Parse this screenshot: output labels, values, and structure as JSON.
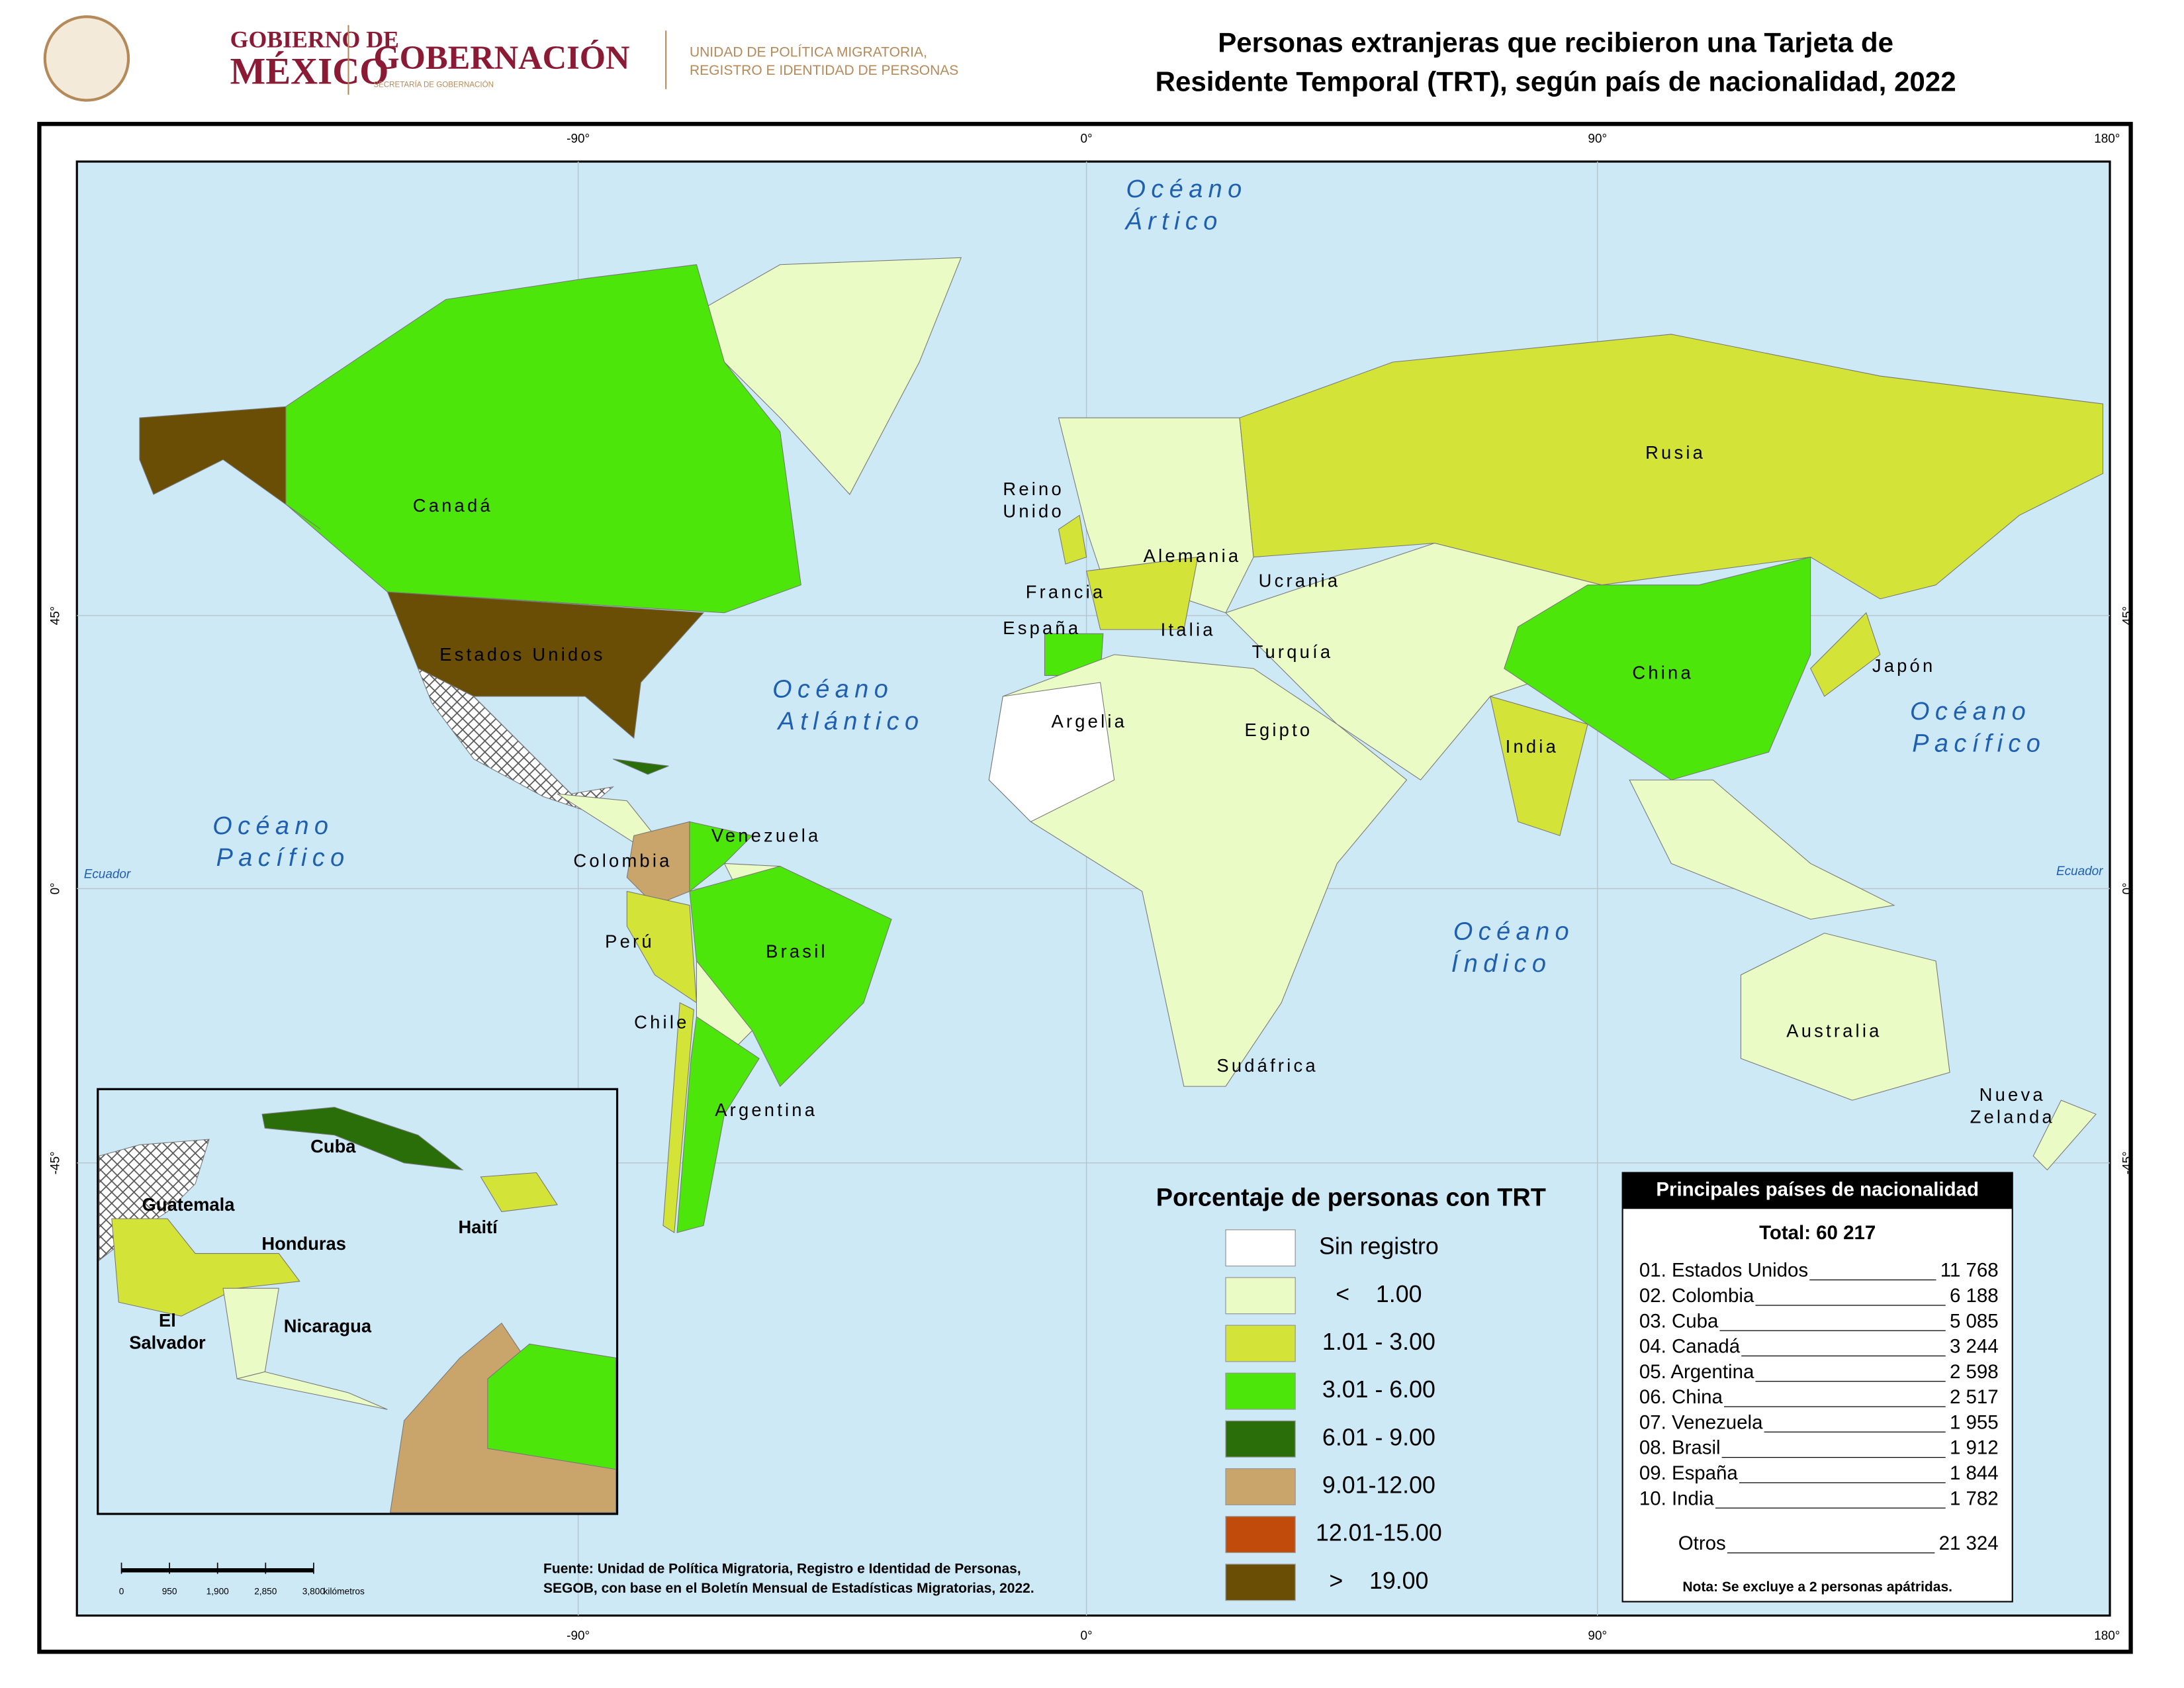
{
  "header": {
    "logo_line1": "GOBIERNO DE",
    "logo_line2": "MÉXICO",
    "agency": "GOBERNACIÓN",
    "agency_sub": "SECRETARÍA DE GOBERNACIÓN",
    "unit_line1": "UNIDAD DE POLÍTICA MIGRATORIA,",
    "unit_line2": "REGISTRO E IDENTIDAD DE PERSONAS",
    "title_line1": "Personas extranjeras que recibieron una Tarjeta de",
    "title_line2": "Residente Temporal (TRT), según país de nacionalidad, 2022"
  },
  "map": {
    "longitude_labels": [
      "-90°",
      "0°",
      "90°",
      "180°"
    ],
    "latitude_labels": [
      "45°",
      "0°",
      "-45°"
    ],
    "equator_label": "Ecuador",
    "oceans": [
      {
        "lines": [
          "Océano",
          "Ártico"
        ]
      },
      {
        "lines": [
          "Océano",
          "Atlántico"
        ]
      },
      {
        "lines": [
          "Océano",
          "Pacífico"
        ]
      },
      {
        "lines": [
          "Océano",
          "Índico"
        ]
      },
      {
        "lines": [
          "Océano",
          "Pacífico"
        ]
      }
    ],
    "countries": [
      "Canadá",
      "Estados Unidos",
      "Colombia",
      "Venezuela",
      "Perú",
      "Brasil",
      "Chile",
      "Argentina",
      "Alemania",
      "Francia",
      "Ucrania",
      "España",
      "Italia",
      "Turquía",
      "Argelia",
      "Egipto",
      "Rusia",
      "China",
      "India",
      "Japón",
      "Australia",
      "Sudáfrica"
    ],
    "two_line_countries": [
      {
        "lines": [
          "Reino",
          "Unido"
        ]
      },
      {
        "lines": [
          "Nueva",
          "Zelanda"
        ]
      }
    ],
    "inset_labels": [
      "Cuba",
      "Guatemala",
      "Honduras",
      "Haití",
      "Nicaragua"
    ],
    "inset_two_line": {
      "lines": [
        "El",
        "Salvador"
      ]
    },
    "scale": {
      "ticks": [
        "0",
        "950",
        "1,900",
        "2,850",
        "3,800"
      ],
      "unit": "kilómetros"
    }
  },
  "legend": {
    "title": "Porcentaje de personas con TRT",
    "items": [
      {
        "label": "Sin registro",
        "color": "#ffffff"
      },
      {
        "label": "<    1.00",
        "color": "#ebfbc6"
      },
      {
        "label": "1.01 - 3.00",
        "color": "#d4e337"
      },
      {
        "label": "3.01 - 6.00",
        "color": "#4de60a"
      },
      {
        "label": "6.01 - 9.00",
        "color": "#2a6e0a"
      },
      {
        "label": "9.01-12.00",
        "color": "#c9a46b"
      },
      {
        "label": "12.01-15.00",
        "color": "#c04b0a"
      },
      {
        "label": ">    19.00",
        "color": "#6a4e05"
      }
    ]
  },
  "table": {
    "title": "Principales países de nacionalidad",
    "total": "Total: 60 217",
    "rows": [
      [
        "01. Estados Unidos",
        "11 768"
      ],
      [
        "02. Colombia",
        "6 188"
      ],
      [
        "03. Cuba",
        "5 085"
      ],
      [
        "04. Canadá",
        "3 244"
      ],
      [
        "05. Argentina",
        "2 598"
      ],
      [
        "06. China",
        "2 517"
      ],
      [
        "07. Venezuela",
        "1 955"
      ],
      [
        "08. Brasil",
        "1 912"
      ],
      [
        "09. España",
        "1 844"
      ],
      [
        "10. India",
        "1 782"
      ]
    ],
    "others": [
      "Otros",
      "21 324"
    ],
    "note": "Nota: Se excluye a 2 personas apátridas."
  },
  "source": {
    "line1": "Fuente: Unidad de Política Migratoria, Registro e Identidad de Personas,",
    "line2": "SEGOB, con base en el Boletín Mensual de Estadísticas Migratorias, 2022."
  }
}
